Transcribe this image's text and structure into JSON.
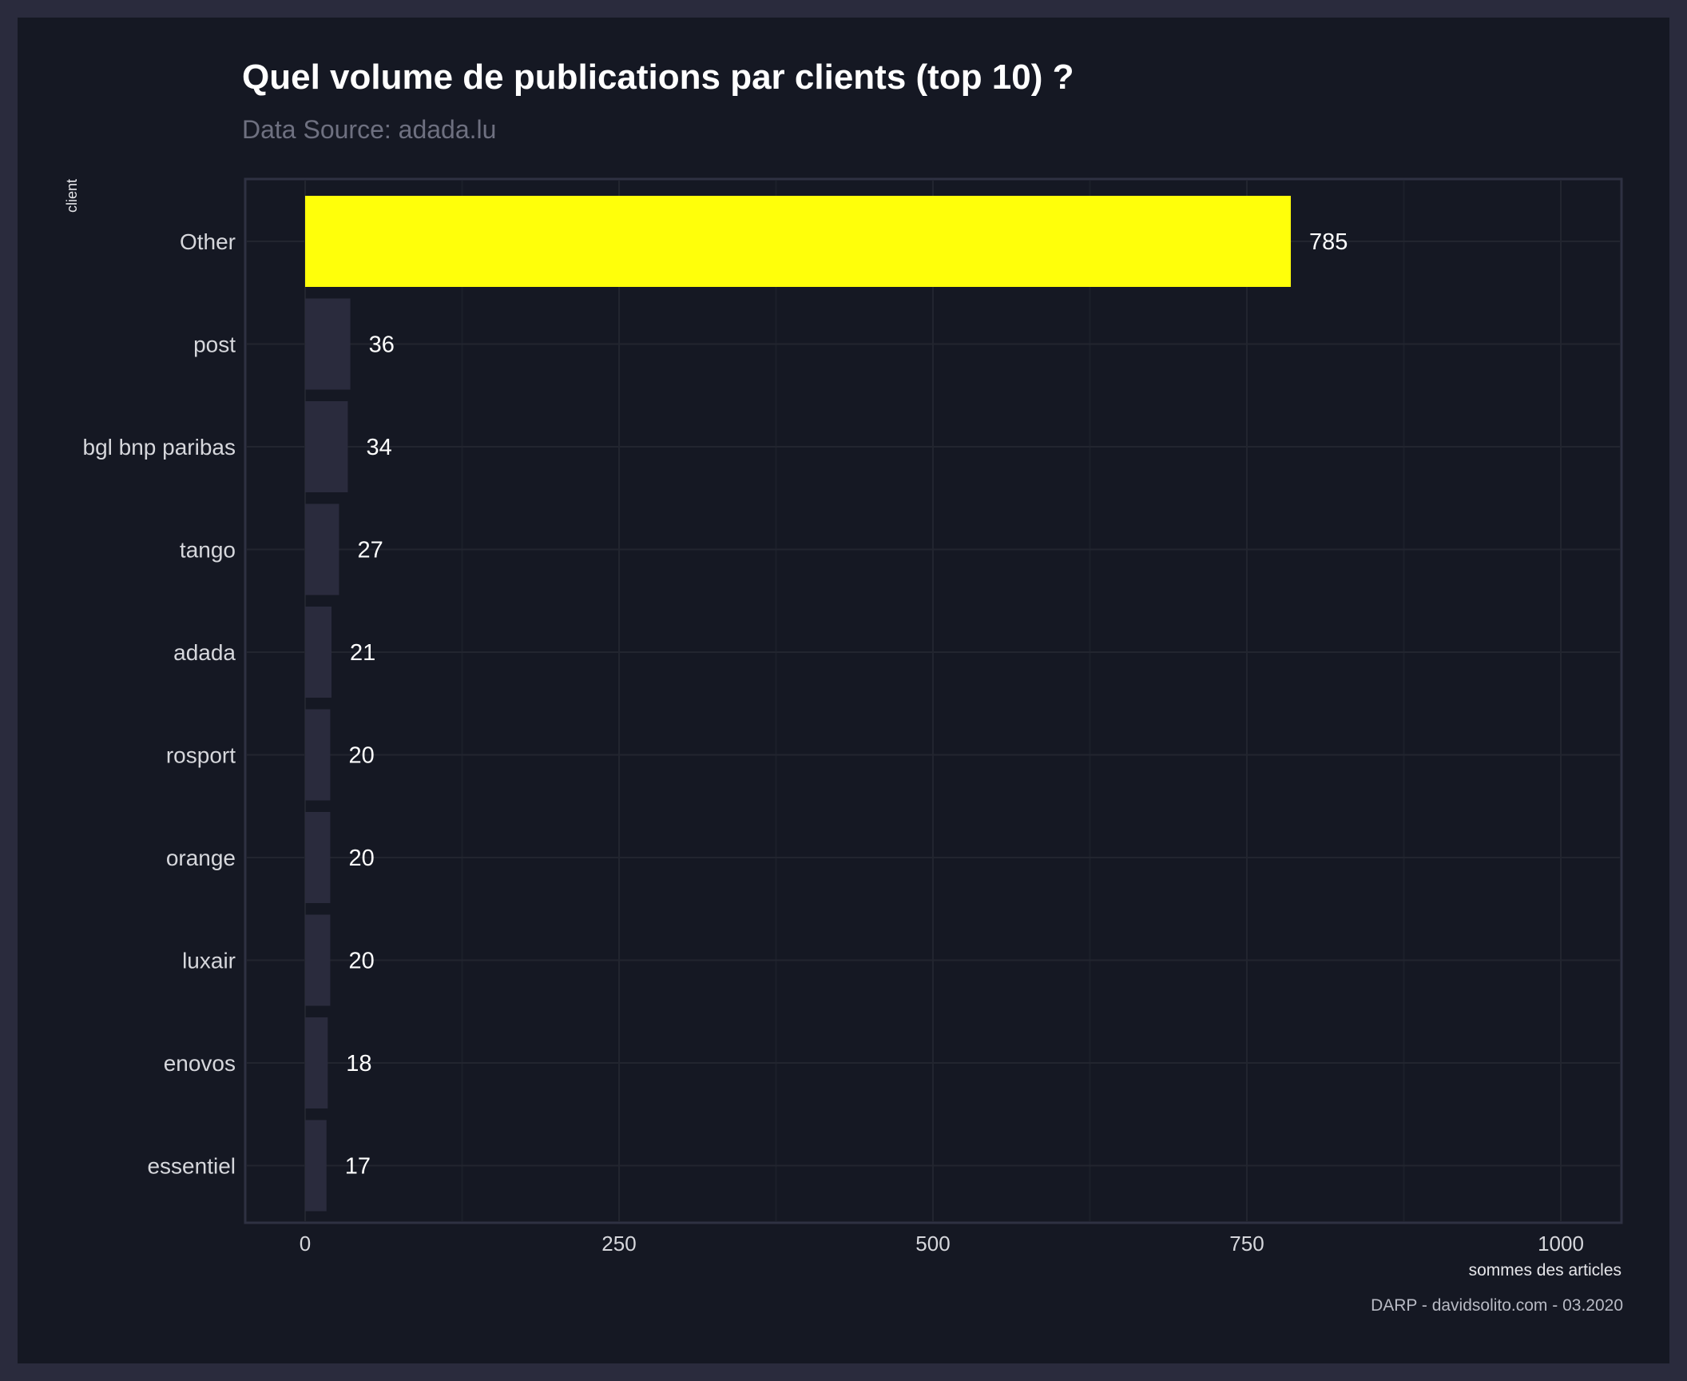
{
  "title": "Quel volume de publications par clients (top 10) ?",
  "subtitle": "Data Source: adada.lu",
  "caption": "DARP - davidsolito.com - 03.2020",
  "colors": {
    "background": "#151823",
    "outer_background": "#2a2b3d",
    "bar_default": "#2a2b3d",
    "bar_highlight": "#ffff0a",
    "gridline": "#22252f",
    "text": "#ffffff",
    "muted_text": "#6e7080"
  },
  "chart_data": {
    "type": "bar",
    "orientation": "horizontal",
    "categories": [
      "Other",
      "post",
      "bgl bnp paribas",
      "tango",
      "adada",
      "rosport",
      "orange",
      "luxair",
      "enovos",
      "essentiel"
    ],
    "values": [
      785,
      36,
      34,
      27,
      21,
      20,
      20,
      20,
      18,
      17
    ],
    "highlight_category": "Other",
    "xlabel": "sommes des articles",
    "ylabel": "client",
    "xlim": [
      0,
      1000
    ],
    "xticks": [
      0,
      250,
      500,
      750,
      1000
    ],
    "grid": true,
    "data_labels": true
  }
}
